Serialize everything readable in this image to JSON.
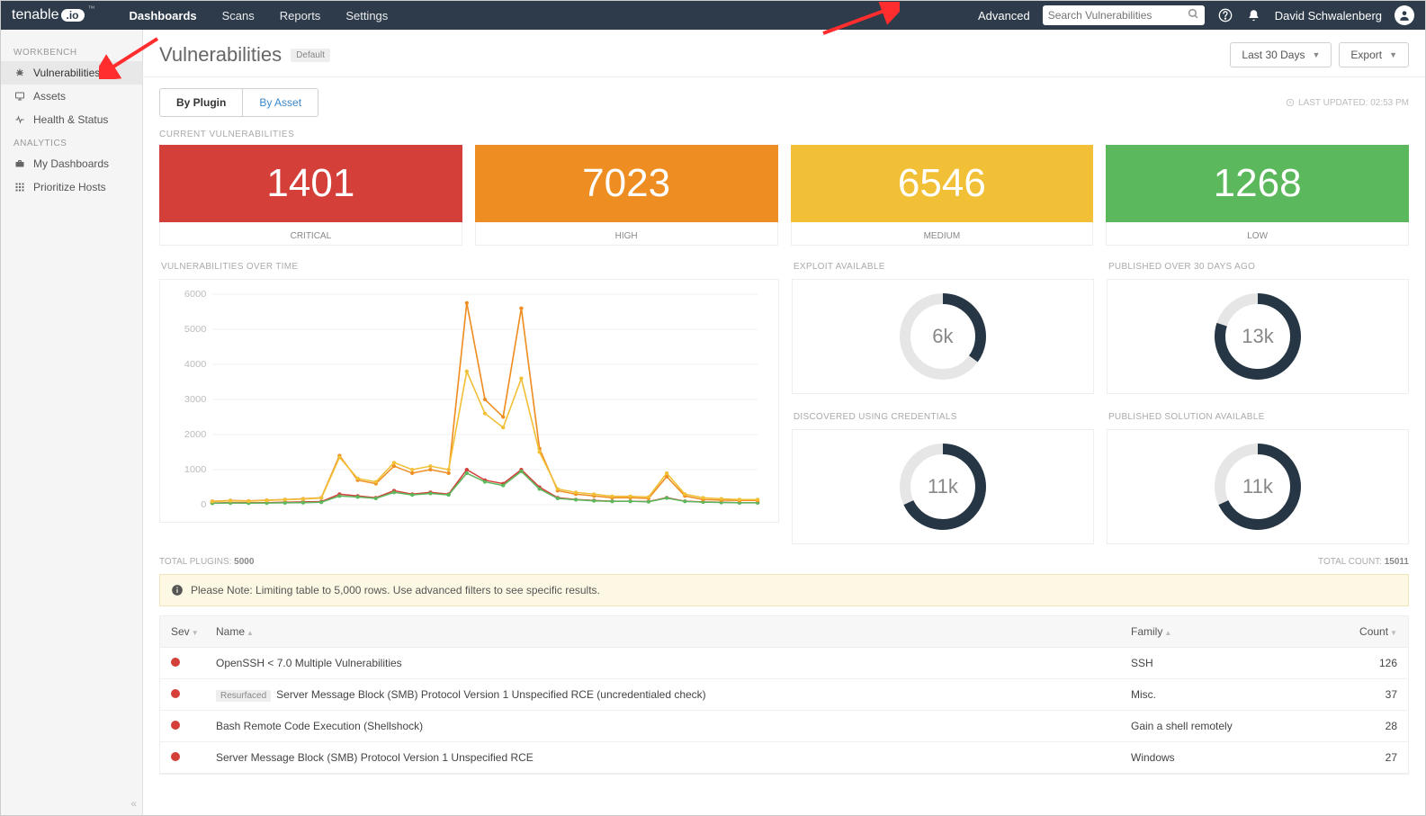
{
  "topnav": {
    "logo_text": "tenable",
    "logo_badge": ".io",
    "links": [
      "Dashboards",
      "Scans",
      "Reports",
      "Settings"
    ],
    "active_link_index": 0,
    "advanced_label": "Advanced",
    "search_placeholder": "Search Vulnerabilities",
    "username": "David Schwalenberg"
  },
  "sidebar": {
    "sections": [
      {
        "label": "WORKBENCH",
        "items": [
          {
            "icon": "bug",
            "label": "Vulnerabilities",
            "active": true
          },
          {
            "icon": "monitor",
            "label": "Assets"
          },
          {
            "icon": "pulse",
            "label": "Health & Status"
          }
        ]
      },
      {
        "label": "ANALYTICS",
        "items": [
          {
            "icon": "briefcase",
            "label": "My Dashboards"
          },
          {
            "icon": "grid",
            "label": "Prioritize Hosts"
          }
        ]
      }
    ]
  },
  "page": {
    "title": "Vulnerabilities",
    "badge": "Default",
    "range_label": "Last 30 Days",
    "export_label": "Export",
    "tabs": [
      "By Plugin",
      "By Asset"
    ],
    "active_tab_index": 0,
    "last_updated_label": "LAST UPDATED: 02:53 PM"
  },
  "summary": {
    "section_label": "CURRENT VULNERABILITIES",
    "cards": [
      {
        "value": "1401",
        "label": "CRITICAL",
        "color": "#d43f3a"
      },
      {
        "value": "7023",
        "label": "HIGH",
        "color": "#ee8e22"
      },
      {
        "value": "6546",
        "label": "MEDIUM",
        "color": "#f2c037"
      },
      {
        "value": "1268",
        "label": "LOW",
        "color": "#5cb85c"
      }
    ]
  },
  "timechart": {
    "label": "VULNERABILITIES OVER TIME",
    "y_ticks": [
      0,
      1000,
      2000,
      3000,
      4000,
      5000,
      6000
    ],
    "ylim": [
      0,
      6000
    ],
    "x_count": 31,
    "series": [
      {
        "color": "#d43f3a",
        "values": [
          50,
          60,
          55,
          60,
          70,
          80,
          90,
          300,
          250,
          200,
          400,
          300,
          350,
          300,
          1000,
          700,
          600,
          1000,
          500,
          200,
          150,
          120,
          100,
          100,
          90,
          200,
          100,
          80,
          70,
          60,
          60
        ]
      },
      {
        "color": "#5cb85c",
        "values": [
          40,
          50,
          45,
          50,
          55,
          60,
          70,
          250,
          220,
          180,
          350,
          280,
          320,
          280,
          900,
          650,
          550,
          950,
          450,
          180,
          140,
          110,
          95,
          95,
          85,
          190,
          95,
          75,
          65,
          55,
          55
        ]
      },
      {
        "color": "#ee8e22",
        "values": [
          100,
          120,
          110,
          130,
          150,
          170,
          200,
          1400,
          700,
          600,
          1100,
          900,
          1000,
          900,
          5750,
          3000,
          2500,
          5600,
          1600,
          400,
          300,
          250,
          200,
          200,
          180,
          800,
          250,
          150,
          130,
          120,
          120
        ]
      },
      {
        "color": "#f2c037",
        "values": [
          90,
          110,
          100,
          120,
          140,
          160,
          190,
          1350,
          750,
          650,
          1200,
          1000,
          1100,
          1000,
          3800,
          2600,
          2200,
          3600,
          1500,
          450,
          350,
          300,
          240,
          240,
          220,
          900,
          300,
          200,
          170,
          150,
          150
        ]
      }
    ]
  },
  "donuts": [
    {
      "label": "EXPLOIT AVAILABLE",
      "value": "6k",
      "pct": 35,
      "color": "#263645",
      "track": "#e6e6e6"
    },
    {
      "label": "DISCOVERED USING CREDENTIALS",
      "value": "11k",
      "pct": 68,
      "color": "#263645",
      "track": "#e6e6e6"
    },
    {
      "label": "PUBLISHED OVER 30 DAYS AGO",
      "value": "13k",
      "pct": 80,
      "color": "#263645",
      "track": "#e6e6e6"
    },
    {
      "label": "PUBLISHED SOLUTION AVAILABLE",
      "value": "11k",
      "pct": 68,
      "color": "#263645",
      "track": "#e6e6e6"
    }
  ],
  "totals": {
    "plugins_label": "TOTAL PLUGINS:",
    "plugins_value": "5000",
    "count_label": "TOTAL COUNT:",
    "count_value": "15011"
  },
  "notice": "Please Note: Limiting table to 5,000 rows. Use advanced filters to see specific results.",
  "table": {
    "columns": [
      "Sev",
      "Name",
      "Family",
      "Count"
    ],
    "rows": [
      {
        "sev_color": "#d43f3a",
        "name": "OpenSSH < 7.0 Multiple Vulnerabilities",
        "resurfaced": false,
        "family": "SSH",
        "count": "126"
      },
      {
        "sev_color": "#d43f3a",
        "name": "Server Message Block (SMB) Protocol Version 1 Unspecified RCE (uncredentialed check)",
        "resurfaced": true,
        "family": "Misc.",
        "count": "37"
      },
      {
        "sev_color": "#d43f3a",
        "name": "Bash Remote Code Execution (Shellshock)",
        "resurfaced": false,
        "family": "Gain a shell remotely",
        "count": "28"
      },
      {
        "sev_color": "#d43f3a",
        "name": "Server Message Block (SMB) Protocol Version 1 Unspecified RCE",
        "resurfaced": false,
        "family": "Windows",
        "count": "27"
      }
    ]
  },
  "arrows": {
    "color": "#ff2d2d"
  }
}
